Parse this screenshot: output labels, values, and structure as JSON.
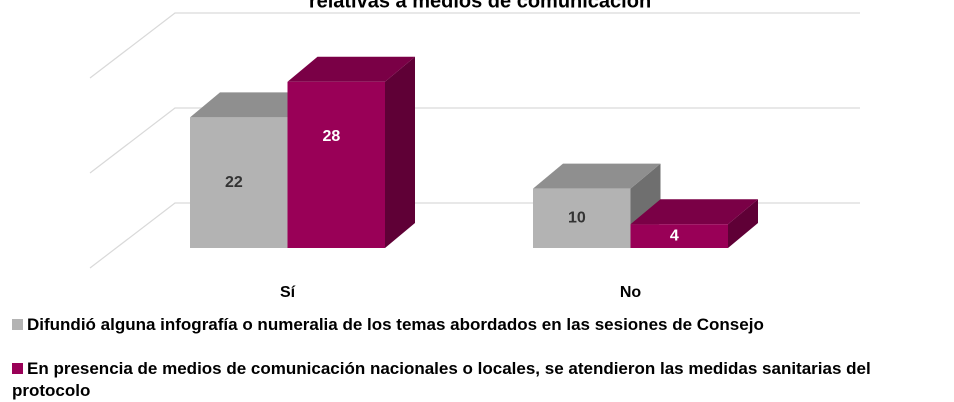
{
  "chart_data": {
    "type": "bar3d",
    "title": "relativas a medios de comunicación",
    "categories": [
      "Sí",
      "No"
    ],
    "series": [
      {
        "name": "Difundió alguna infografía o numeralia de los temas abordados en las sesiones de Consejo",
        "color": "#b3b3b3",
        "values": [
          22,
          10
        ]
      },
      {
        "name": "En presencia de medios de comunicación nacionales o locales, se atendieron las medidas sanitarias del protocolo",
        "color": "#990057",
        "values": [
          28,
          4
        ]
      }
    ],
    "ylim": [
      0,
      48
    ],
    "yticks": [
      0,
      16,
      32,
      48
    ],
    "grid": true
  }
}
